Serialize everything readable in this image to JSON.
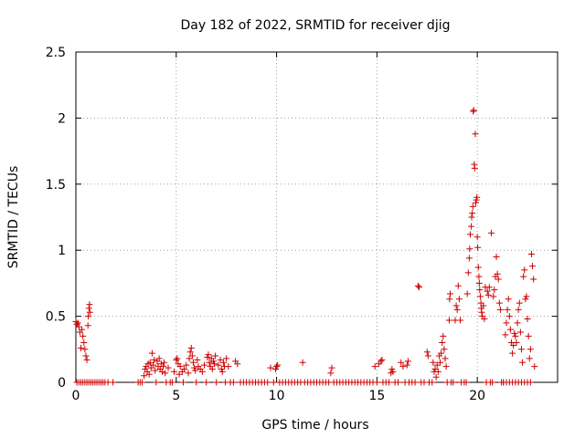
{
  "chart_data": {
    "type": "scatter",
    "title": "Day 182 of 2022, SRMTID for receiver djig",
    "xlabel": "GPS time / hours",
    "ylabel": "SRMTID / TECUs",
    "xlim": [
      0,
      24
    ],
    "ylim": [
      0,
      2.5
    ],
    "grid": true,
    "marker": "+",
    "x_ticks": [
      0,
      5,
      10,
      15,
      20
    ],
    "x_tick_labels": [
      "0",
      "5",
      "10",
      "15",
      "20"
    ],
    "y_ticks": [
      0,
      0.5,
      1,
      1.5,
      2,
      2.5
    ],
    "y_tick_labels": [
      "0",
      "0.5",
      "1",
      "1.5",
      "2",
      "2.5"
    ],
    "series": [
      {
        "name": "SRMTID",
        "color": "#cc0000",
        "points": [
          [
            0.0,
            0.46
          ],
          [
            0.05,
            0.44
          ],
          [
            0.1,
            0.45
          ],
          [
            0.15,
            0.42
          ],
          [
            0.2,
            0.38
          ],
          [
            0.25,
            0.26
          ],
          [
            0.3,
            0.4
          ],
          [
            0.35,
            0.35
          ],
          [
            0.4,
            0.3
          ],
          [
            0.45,
            0.25
          ],
          [
            0.5,
            0.2
          ],
          [
            0.55,
            0.17
          ],
          [
            0.6,
            0.43
          ],
          [
            0.62,
            0.5
          ],
          [
            0.65,
            0.56
          ],
          [
            0.68,
            0.59
          ],
          [
            0.7,
            0.53
          ],
          [
            0.05,
            0.0
          ],
          [
            0.15,
            0.0
          ],
          [
            0.25,
            0.0
          ],
          [
            0.35,
            0.0
          ],
          [
            0.45,
            0.0
          ],
          [
            0.55,
            0.0
          ],
          [
            0.65,
            0.0
          ],
          [
            0.75,
            0.0
          ],
          [
            0.85,
            0.0
          ],
          [
            0.95,
            0.0
          ],
          [
            1.05,
            0.0
          ],
          [
            1.15,
            0.0
          ],
          [
            1.25,
            0.0
          ],
          [
            1.35,
            0.0
          ],
          [
            1.45,
            0.0
          ],
          [
            1.6,
            0.0
          ],
          [
            1.85,
            0.0
          ],
          [
            3.1,
            0.0
          ],
          [
            3.2,
            0.0
          ],
          [
            3.3,
            0.0
          ],
          [
            3.4,
            0.05
          ],
          [
            3.45,
            0.1
          ],
          [
            3.5,
            0.12
          ],
          [
            3.55,
            0.08
          ],
          [
            3.6,
            0.14
          ],
          [
            3.65,
            0.06
          ],
          [
            3.7,
            0.15
          ],
          [
            3.75,
            0.11
          ],
          [
            3.8,
            0.22
          ],
          [
            3.85,
            0.13
          ],
          [
            3.9,
            0.17
          ],
          [
            3.95,
            0.09
          ],
          [
            4.0,
            0.0
          ],
          [
            4.05,
            0.16
          ],
          [
            4.1,
            0.12
          ],
          [
            4.15,
            0.18
          ],
          [
            4.2,
            0.1
          ],
          [
            4.25,
            0.14
          ],
          [
            4.3,
            0.08
          ],
          [
            4.35,
            0.12
          ],
          [
            4.4,
            0.15
          ],
          [
            4.45,
            0.07
          ],
          [
            4.5,
            0.0
          ],
          [
            4.6,
            0.11
          ],
          [
            4.7,
            0.0
          ],
          [
            4.8,
            0.0
          ],
          [
            4.9,
            0.08
          ],
          [
            5.0,
            0.17
          ],
          [
            5.05,
            0.18
          ],
          [
            5.1,
            0.14
          ],
          [
            5.15,
            0.06
          ],
          [
            5.2,
            0.12
          ],
          [
            5.3,
            0.08
          ],
          [
            5.35,
            0.0
          ],
          [
            5.4,
            0.1
          ],
          [
            5.5,
            0.13
          ],
          [
            5.6,
            0.07
          ],
          [
            5.65,
            0.18
          ],
          [
            5.7,
            0.23
          ],
          [
            5.75,
            0.26
          ],
          [
            5.8,
            0.2
          ],
          [
            5.85,
            0.15
          ],
          [
            5.9,
            0.11
          ],
          [
            5.95,
            0.09
          ],
          [
            6.0,
            0.0
          ],
          [
            6.05,
            0.17
          ],
          [
            6.1,
            0.12
          ],
          [
            6.2,
            0.1
          ],
          [
            6.3,
            0.08
          ],
          [
            6.4,
            0.13
          ],
          [
            6.5,
            0.0
          ],
          [
            6.55,
            0.19
          ],
          [
            6.6,
            0.21
          ],
          [
            6.65,
            0.15
          ],
          [
            6.7,
            0.12
          ],
          [
            6.75,
            0.18
          ],
          [
            6.8,
            0.1
          ],
          [
            6.85,
            0.16
          ],
          [
            6.9,
            0.14
          ],
          [
            6.95,
            0.2
          ],
          [
            7.0,
            0.0
          ],
          [
            7.1,
            0.13
          ],
          [
            7.2,
            0.17
          ],
          [
            7.25,
            0.1
          ],
          [
            7.3,
            0.08
          ],
          [
            7.35,
            0.15
          ],
          [
            7.4,
            0.12
          ],
          [
            7.45,
            0.0
          ],
          [
            7.5,
            0.18
          ],
          [
            7.6,
            0.12
          ],
          [
            7.7,
            0.0
          ],
          [
            7.85,
            0.0
          ],
          [
            7.95,
            0.16
          ],
          [
            8.05,
            0.14
          ],
          [
            8.2,
            0.0
          ],
          [
            8.35,
            0.0
          ],
          [
            8.5,
            0.0
          ],
          [
            8.65,
            0.0
          ],
          [
            8.8,
            0.0
          ],
          [
            8.95,
            0.0
          ],
          [
            9.1,
            0.0
          ],
          [
            9.25,
            0.0
          ],
          [
            9.4,
            0.0
          ],
          [
            9.55,
            0.0
          ],
          [
            9.7,
            0.11
          ],
          [
            9.85,
            0.0
          ],
          [
            9.95,
            0.1
          ],
          [
            10.0,
            0.12
          ],
          [
            10.05,
            0.13
          ],
          [
            10.15,
            0.0
          ],
          [
            10.3,
            0.0
          ],
          [
            10.45,
            0.0
          ],
          [
            10.6,
            0.0
          ],
          [
            10.75,
            0.0
          ],
          [
            10.9,
            0.0
          ],
          [
            11.05,
            0.0
          ],
          [
            11.2,
            0.0
          ],
          [
            11.3,
            0.15
          ],
          [
            11.4,
            0.0
          ],
          [
            11.55,
            0.0
          ],
          [
            11.7,
            0.0
          ],
          [
            11.85,
            0.0
          ],
          [
            12.0,
            0.0
          ],
          [
            12.15,
            0.0
          ],
          [
            12.3,
            0.0
          ],
          [
            12.45,
            0.0
          ],
          [
            12.6,
            0.0
          ],
          [
            12.7,
            0.07
          ],
          [
            12.75,
            0.11
          ],
          [
            12.85,
            0.0
          ],
          [
            13.0,
            0.0
          ],
          [
            13.15,
            0.0
          ],
          [
            13.3,
            0.0
          ],
          [
            13.45,
            0.0
          ],
          [
            13.6,
            0.0
          ],
          [
            13.75,
            0.0
          ],
          [
            13.9,
            0.0
          ],
          [
            14.05,
            0.0
          ],
          [
            14.2,
            0.0
          ],
          [
            14.35,
            0.0
          ],
          [
            14.5,
            0.0
          ],
          [
            14.65,
            0.0
          ],
          [
            14.8,
            0.0
          ],
          [
            14.9,
            0.12
          ],
          [
            15.0,
            0.0
          ],
          [
            15.1,
            0.14
          ],
          [
            15.2,
            0.16
          ],
          [
            15.25,
            0.17
          ],
          [
            15.3,
            0.0
          ],
          [
            15.45,
            0.0
          ],
          [
            15.6,
            0.0
          ],
          [
            15.7,
            0.07
          ],
          [
            15.75,
            0.1
          ],
          [
            15.8,
            0.08
          ],
          [
            15.9,
            0.0
          ],
          [
            16.05,
            0.0
          ],
          [
            16.2,
            0.15
          ],
          [
            16.3,
            0.12
          ],
          [
            16.4,
            0.0
          ],
          [
            16.5,
            0.13
          ],
          [
            16.55,
            0.16
          ],
          [
            16.6,
            0.0
          ],
          [
            16.75,
            0.0
          ],
          [
            16.9,
            0.0
          ],
          [
            17.05,
            0.73
          ],
          [
            17.1,
            0.72
          ],
          [
            17.2,
            0.0
          ],
          [
            17.35,
            0.0
          ],
          [
            17.5,
            0.23
          ],
          [
            17.55,
            0.2
          ],
          [
            17.6,
            0.0
          ],
          [
            17.75,
            0.0
          ],
          [
            17.8,
            0.15
          ],
          [
            17.85,
            0.08
          ],
          [
            17.9,
            0.1
          ],
          [
            17.95,
            0.04
          ],
          [
            18.0,
            0.13
          ],
          [
            18.05,
            0.08
          ],
          [
            18.1,
            0.2
          ],
          [
            18.15,
            0.15
          ],
          [
            18.2,
            0.22
          ],
          [
            18.25,
            0.3
          ],
          [
            18.3,
            0.35
          ],
          [
            18.35,
            0.25
          ],
          [
            18.4,
            0.18
          ],
          [
            18.45,
            0.12
          ],
          [
            18.5,
            0.0
          ],
          [
            18.6,
            0.47
          ],
          [
            18.62,
            0.63
          ],
          [
            18.65,
            0.67
          ],
          [
            18.7,
            0.0
          ],
          [
            18.8,
            0.0
          ],
          [
            18.9,
            0.47
          ],
          [
            18.95,
            0.58
          ],
          [
            19.0,
            0.55
          ],
          [
            19.05,
            0.73
          ],
          [
            19.1,
            0.63
          ],
          [
            19.15,
            0.47
          ],
          [
            19.2,
            0.0
          ],
          [
            19.35,
            0.0
          ],
          [
            19.45,
            0.0
          ],
          [
            19.5,
            0.67
          ],
          [
            19.55,
            0.83
          ],
          [
            19.6,
            0.94
          ],
          [
            19.62,
            1.01
          ],
          [
            19.65,
            1.12
          ],
          [
            19.7,
            1.18
          ],
          [
            19.72,
            1.25
          ],
          [
            19.75,
            1.28
          ],
          [
            19.78,
            1.33
          ],
          [
            19.8,
            2.05
          ],
          [
            19.82,
            2.06
          ],
          [
            19.85,
            1.65
          ],
          [
            19.87,
            1.62
          ],
          [
            19.9,
            1.88
          ],
          [
            19.92,
            1.36
          ],
          [
            19.95,
            1.38
          ],
          [
            19.98,
            1.4
          ],
          [
            20.0,
            1.1
          ],
          [
            20.02,
            1.02
          ],
          [
            20.05,
            0.87
          ],
          [
            20.08,
            0.8
          ],
          [
            20.1,
            0.75
          ],
          [
            20.12,
            0.7
          ],
          [
            20.15,
            0.65
          ],
          [
            20.18,
            0.6
          ],
          [
            20.2,
            0.56
          ],
          [
            20.22,
            0.53
          ],
          [
            20.25,
            0.5
          ],
          [
            20.3,
            0.58
          ],
          [
            20.35,
            0.48
          ],
          [
            20.4,
            0.72
          ],
          [
            20.45,
            0.0
          ],
          [
            20.5,
            0.69
          ],
          [
            20.55,
            0.66
          ],
          [
            20.6,
            0.72
          ],
          [
            20.65,
            0.0
          ],
          [
            20.7,
            1.13
          ],
          [
            20.75,
            0.0
          ],
          [
            20.8,
            0.65
          ],
          [
            20.85,
            0.7
          ],
          [
            20.9,
            0.8
          ],
          [
            20.95,
            0.95
          ],
          [
            21.0,
            0.82
          ],
          [
            21.05,
            0.78
          ],
          [
            21.1,
            0.6
          ],
          [
            21.15,
            0.55
          ],
          [
            21.2,
            0.0
          ],
          [
            21.3,
            0.0
          ],
          [
            21.4,
            0.36
          ],
          [
            21.45,
            0.45
          ],
          [
            21.5,
            0.55
          ],
          [
            21.55,
            0.63
          ],
          [
            21.6,
            0.5
          ],
          [
            21.65,
            0.4
          ],
          [
            21.7,
            0.3
          ],
          [
            21.75,
            0.22
          ],
          [
            21.8,
            0.28
          ],
          [
            21.85,
            0.37
          ],
          [
            21.9,
            0.35
          ],
          [
            21.95,
            0.3
          ],
          [
            22.0,
            0.45
          ],
          [
            22.05,
            0.55
          ],
          [
            22.1,
            0.6
          ],
          [
            22.15,
            0.38
          ],
          [
            22.2,
            0.25
          ],
          [
            22.25,
            0.15
          ],
          [
            22.3,
            0.8
          ],
          [
            22.35,
            0.85
          ],
          [
            22.4,
            0.63
          ],
          [
            22.45,
            0.65
          ],
          [
            22.5,
            0.48
          ],
          [
            22.55,
            0.35
          ],
          [
            22.6,
            0.18
          ],
          [
            22.65,
            0.25
          ],
          [
            22.7,
            0.97
          ],
          [
            22.75,
            0.88
          ],
          [
            22.8,
            0.78
          ],
          [
            22.85,
            0.12
          ],
          [
            21.3,
            0.0
          ],
          [
            21.45,
            0.0
          ],
          [
            21.6,
            0.0
          ],
          [
            21.75,
            0.0
          ],
          [
            21.9,
            0.0
          ],
          [
            22.05,
            0.0
          ],
          [
            22.2,
            0.0
          ],
          [
            22.35,
            0.0
          ],
          [
            22.5,
            0.0
          ],
          [
            22.65,
            0.0
          ]
        ]
      }
    ]
  }
}
